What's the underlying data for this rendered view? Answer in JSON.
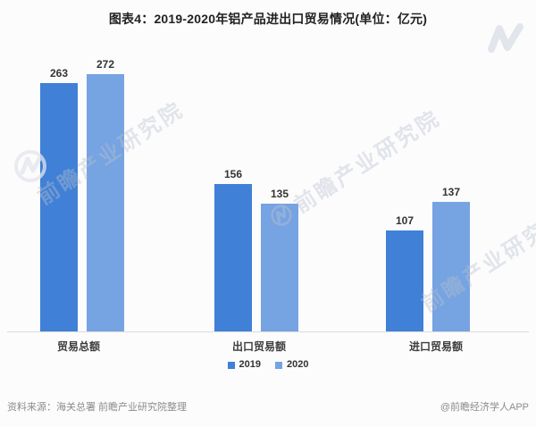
{
  "chart_data": {
    "type": "bar",
    "title": "图表4：2019-2020年铝产品进出口贸易情况(单位：亿元)",
    "unit": "亿元",
    "categories": [
      "贸易总额",
      "出口贸易额",
      "进口贸易额"
    ],
    "series": [
      {
        "name": "2019",
        "color": "#4080d6",
        "values": [
          263,
          156,
          107
        ]
      },
      {
        "name": "2020",
        "color": "#76a3e2",
        "values": [
          272,
          135,
          137
        ]
      }
    ],
    "value_labels_shown": true,
    "grid": false,
    "legend_position": "bottom",
    "ylim": [
      0,
      290
    ],
    "axis_line_color": "#dcdcdc"
  },
  "footer": {
    "source": "资料来源：海关总署 前瞻产业研究院整理",
    "credit": "@前瞻经济学人APP"
  },
  "watermark": {
    "text": "前瞻产业研究院",
    "logo": "qianzhan-logo"
  }
}
